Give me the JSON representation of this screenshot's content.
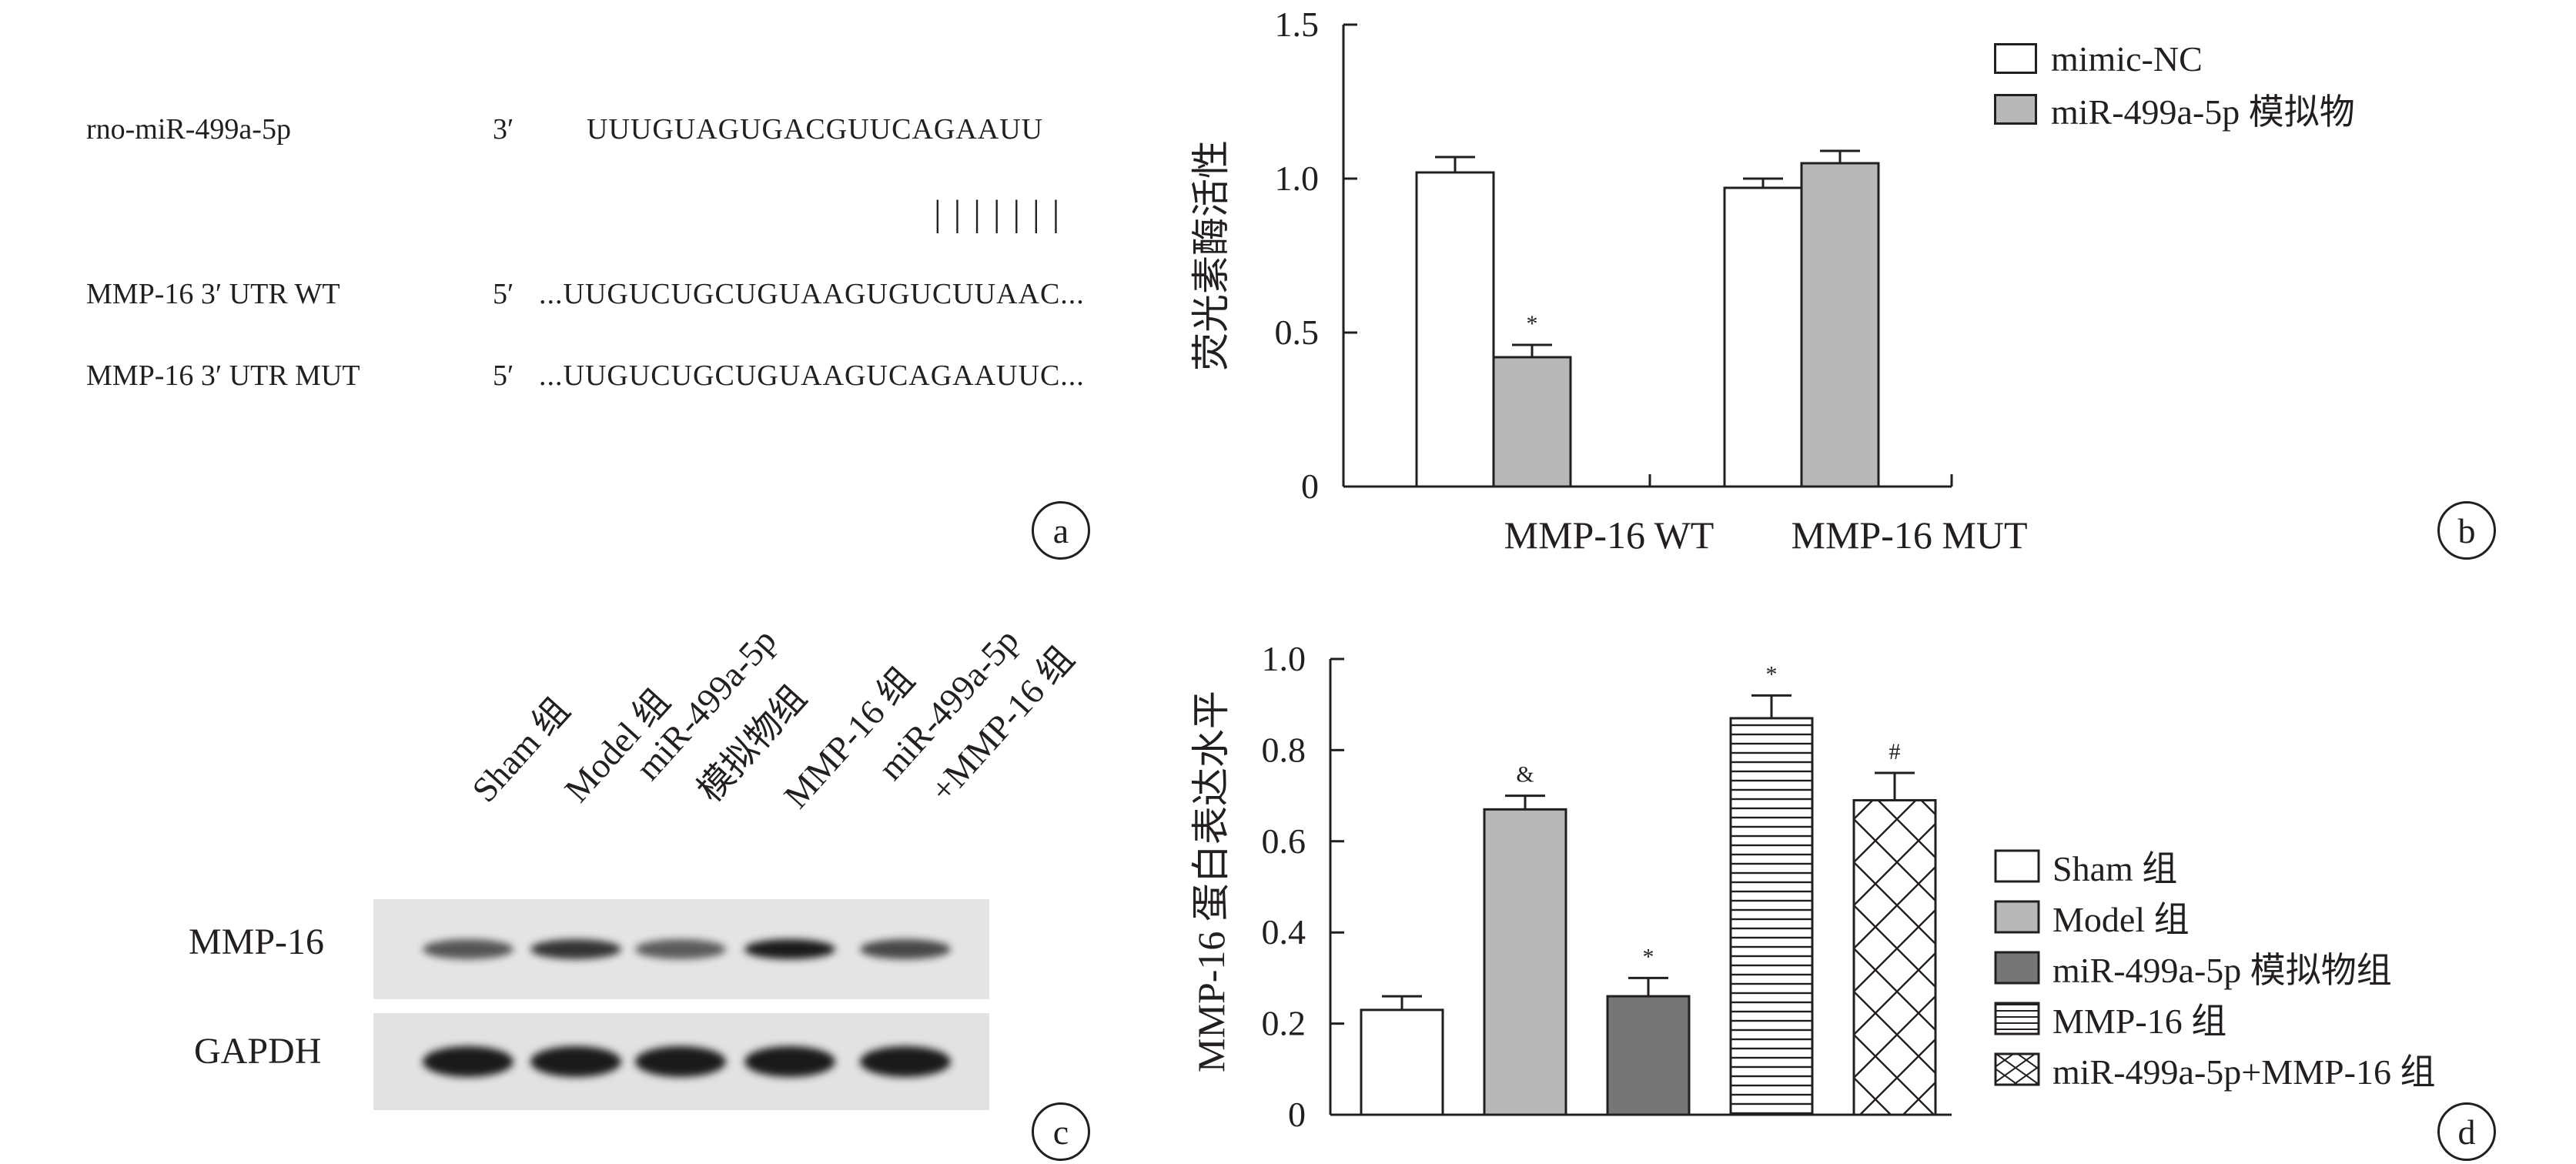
{
  "panel_a": {
    "rows": [
      {
        "name": "rno-miR-499a-5p",
        "end": "3′",
        "seq": "UUUGUAGUGACGUUCAGAAUU"
      },
      {
        "name": "MMP-16 3′ UTR WT",
        "end": "5′",
        "seq": "...UUGUCUGCUGUAAGUGUCUUAAC..."
      },
      {
        "name": "MMP-16 3′ UTR MUT",
        "end": "5′",
        "seq": "...UUGUCUGCUGUAAGUCAGAAUUC..."
      }
    ],
    "pairing": "| | | | | | |",
    "label": "a"
  },
  "panel_c": {
    "lanes": [
      "Sham 组",
      "Model 组",
      "miR-499a-5p",
      "模拟物组",
      "MMP-16 组",
      "miR-499a-5p",
      "+MMP-16 组"
    ],
    "proteins": [
      "MMP-16",
      "GAPDH"
    ],
    "mmp16_intensity": [
      0.55,
      0.8,
      0.5,
      1.0,
      0.65
    ],
    "gapdh_intensity": [
      1.0,
      1.0,
      1.0,
      1.0,
      1.0
    ],
    "label": "c"
  },
  "chart_data": [
    {
      "type": "bar",
      "label": "b",
      "ylabel": "荧光素酶活性",
      "ylim": [
        0,
        1.5
      ],
      "yticks": [
        "0",
        "0.5",
        "1.0",
        "1.5"
      ],
      "categories": [
        "MMP-16 WT",
        "MMP-16 MUT"
      ],
      "series": [
        {
          "name": "mimic-NC",
          "values": [
            1.02,
            0.97
          ],
          "errors": [
            0.05,
            0.03
          ],
          "marks": [
            "",
            ""
          ],
          "fill": "#ffffff"
        },
        {
          "name": "miR-499a-5p 模拟物",
          "values": [
            0.42,
            1.05
          ],
          "errors": [
            0.04,
            0.04
          ],
          "marks": [
            "*",
            ""
          ],
          "fill": "#b8b8b8"
        }
      ],
      "legend": "top-right"
    },
    {
      "type": "bar",
      "label": "d",
      "ylabel": "MMP-16 蛋白表达水平",
      "ylim": [
        0,
        1.0
      ],
      "yticks": [
        "0",
        "0.2",
        "0.4",
        "0.6",
        "0.8",
        "1.0"
      ],
      "categories": [
        "Sham 组",
        "Model 组",
        "miR-499a-5p 模拟物组",
        "MMP-16 组",
        "miR-499a-5p+MMP-16 组"
      ],
      "values": [
        0.23,
        0.67,
        0.26,
        0.87,
        0.69
      ],
      "errors": [
        0.03,
        0.03,
        0.04,
        0.05,
        0.06
      ],
      "marks": [
        "",
        "&",
        "*",
        "*",
        "#"
      ],
      "patterns": [
        "white",
        "lightgray",
        "darkgray",
        "hlines",
        "crosshatch"
      ],
      "legend": "right"
    }
  ]
}
